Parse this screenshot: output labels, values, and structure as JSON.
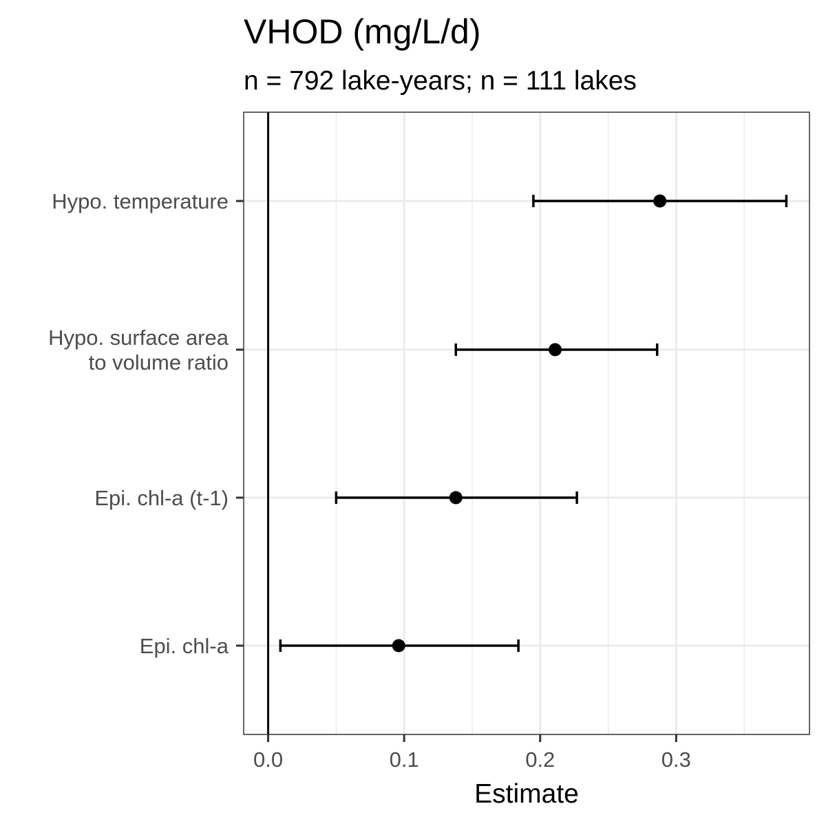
{
  "chart_data": {
    "type": "forest",
    "title": "VHOD (mg/L/d)",
    "subtitle": "n = 792 lake-years; n = 111 lakes",
    "xlabel": "Estimate",
    "ylabel": "",
    "xlim": [
      -0.018,
      0.398
    ],
    "x_ticks": [
      "0.0",
      "0.1",
      "0.2",
      "0.3"
    ],
    "x_tick_values": [
      0.0,
      0.1,
      0.2,
      0.3
    ],
    "x_minor_grid": [
      0.05,
      0.15,
      0.25,
      0.35
    ],
    "reference_line": 0,
    "grid": true,
    "categories": [
      {
        "label_lines": [
          "Hypo. temperature"
        ],
        "estimate": 0.288,
        "lower": 0.195,
        "upper": 0.381
      },
      {
        "label_lines": [
          "Hypo. surface area",
          "to volume ratio"
        ],
        "estimate": 0.211,
        "lower": 0.138,
        "upper": 0.286
      },
      {
        "label_lines": [
          "Epi. chl-a (t-1)"
        ],
        "estimate": 0.138,
        "lower": 0.05,
        "upper": 0.227
      },
      {
        "label_lines": [
          "Epi. chl-a"
        ],
        "estimate": 0.096,
        "lower": 0.009,
        "upper": 0.184
      }
    ]
  }
}
